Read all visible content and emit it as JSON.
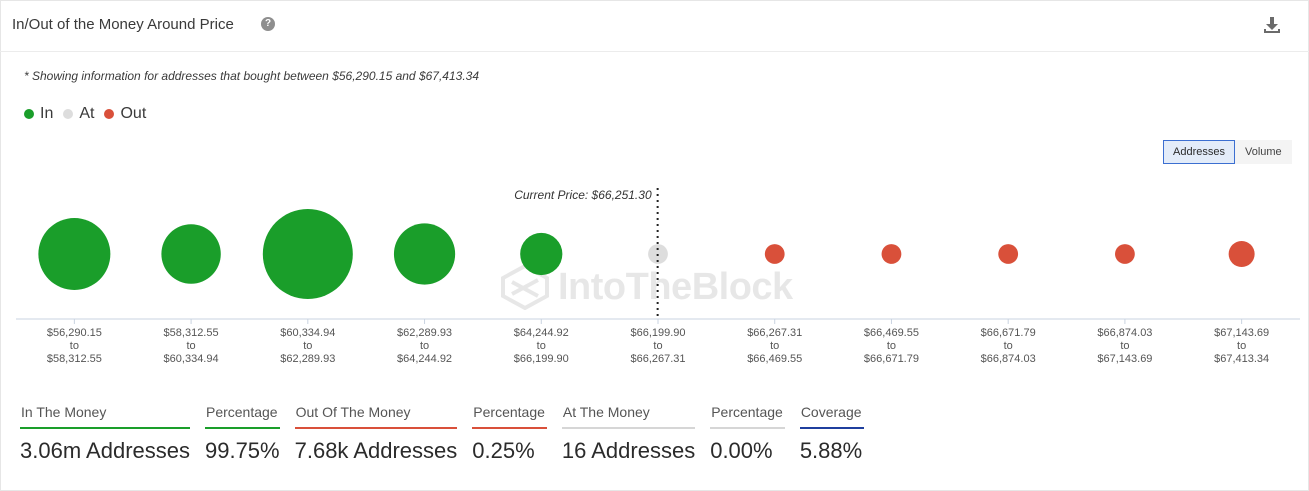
{
  "header": {
    "title": "In/Out of the Money Around Price",
    "help_icon": "question-circle-icon",
    "download_icon": "download-icon"
  },
  "note": "* Showing information for addresses that bought between $56,290.15 and $67,413.34",
  "legend": [
    {
      "label": "In",
      "color": "#1a9e2a"
    },
    {
      "label": "At",
      "color": "#dddddd"
    },
    {
      "label": "Out",
      "color": "#d9503a"
    }
  ],
  "toggle": {
    "addresses_label": "Addresses",
    "volume_label": "Volume",
    "active": "Addresses"
  },
  "watermark": "IntoTheBlock",
  "chart_data": {
    "type": "scatter",
    "current_price_label": "Current Price: $66,251.30",
    "current_price_position": "between bucket 5 and bucket 6",
    "size_encoding": "addresses",
    "buckets": [
      {
        "from": "$56,290.15",
        "to_word": "to",
        "until": "$58,312.55",
        "status": "In",
        "relative_size": 0.8
      },
      {
        "from": "$58,312.55",
        "to_word": "to",
        "until": "$60,334.94",
        "status": "In",
        "relative_size": 0.66
      },
      {
        "from": "$60,334.94",
        "to_word": "to",
        "until": "$62,289.93",
        "status": "In",
        "relative_size": 1.0
      },
      {
        "from": "$62,289.93",
        "to_word": "to",
        "until": "$64,244.92",
        "status": "In",
        "relative_size": 0.68
      },
      {
        "from": "$64,244.92",
        "to_word": "to",
        "until": "$66,199.90",
        "status": "In",
        "relative_size": 0.47
      },
      {
        "from": "$66,199.90",
        "to_word": "to",
        "until": "$66,267.31",
        "status": "At",
        "relative_size": 0.22
      },
      {
        "from": "$66,267.31",
        "to_word": "to",
        "until": "$66,469.55",
        "status": "Out",
        "relative_size": 0.22
      },
      {
        "from": "$66,469.55",
        "to_word": "to",
        "until": "$66,671.79",
        "status": "Out",
        "relative_size": 0.22
      },
      {
        "from": "$66,671.79",
        "to_word": "to",
        "until": "$66,874.03",
        "status": "Out",
        "relative_size": 0.22
      },
      {
        "from": "$66,874.03",
        "to_word": "to",
        "until": "$67,143.69",
        "status": "Out",
        "relative_size": 0.22
      },
      {
        "from": "$67,143.69",
        "to_word": "to",
        "until": "$67,413.34",
        "status": "Out",
        "relative_size": 0.29
      }
    ]
  },
  "stats": [
    {
      "label": "In The Money",
      "value": "3.06m Addresses",
      "color": "#1a9e2a"
    },
    {
      "label": "Percentage",
      "value": "99.75%",
      "color": "#1a9e2a"
    },
    {
      "label": "Out Of The Money",
      "value": "7.68k Addresses",
      "color": "#d9503a"
    },
    {
      "label": "Percentage",
      "value": "0.25%",
      "color": "#d9503a"
    },
    {
      "label": "At The Money",
      "value": "16 Addresses",
      "color": "#d6d6d6"
    },
    {
      "label": "Percentage",
      "value": "0.00%",
      "color": "#d6d6d6"
    },
    {
      "label": "Coverage",
      "value": "5.88%",
      "color": "#1f3f9e"
    }
  ]
}
